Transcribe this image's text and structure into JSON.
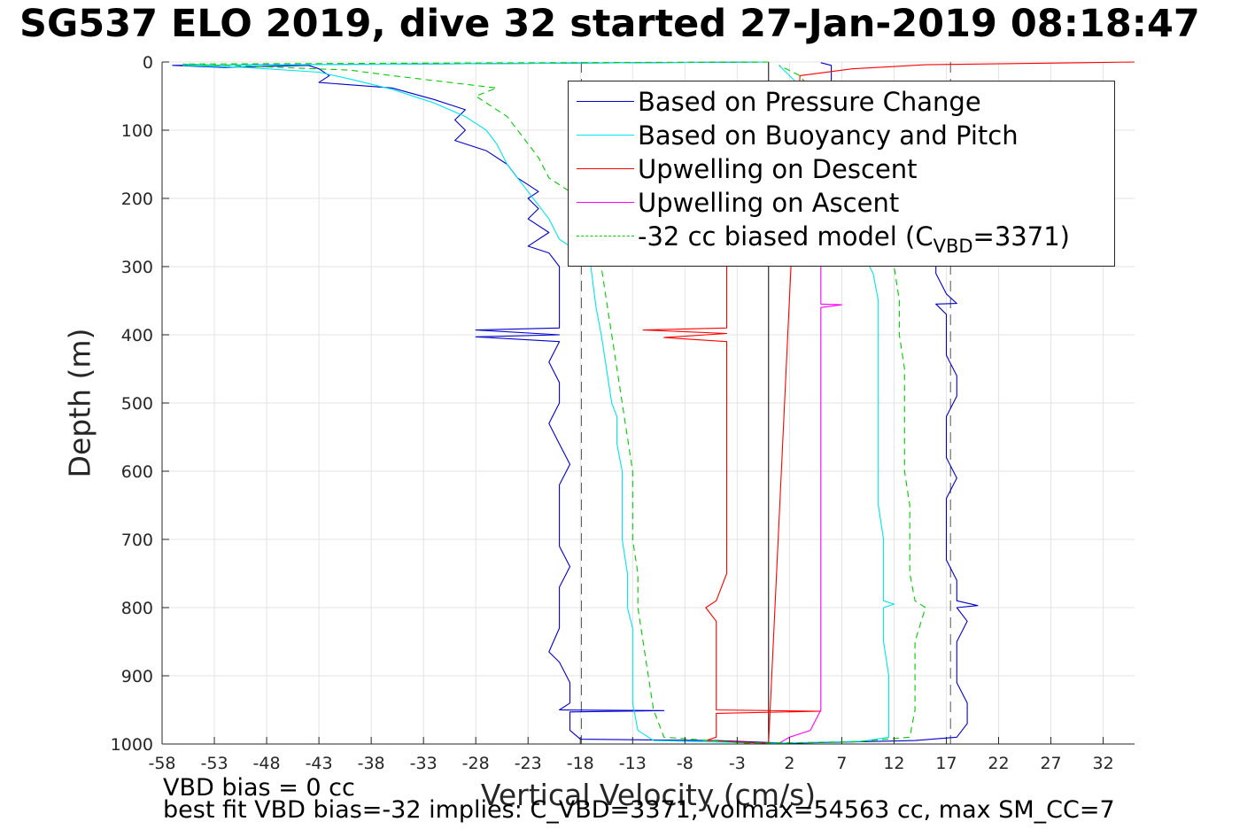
{
  "title": "SG537 ELO 2019, dive 32 started 27-Jan-2019 08:18:47",
  "xlabel": "Vertical Velocity (cm/s)",
  "ylabel": "Depth (m)",
  "footer": {
    "line1": "VBD bias = 0 cc",
    "line2": "best fit VBD bias=-32 implies: C_VBD=3371, volmax=54563 cc, max SM_CC=7"
  },
  "legend": {
    "items": [
      {
        "label": "Based on Pressure Change",
        "color": "#0000cc",
        "style": "solid"
      },
      {
        "label": "Based on Buoyancy and Pitch",
        "color": "#00e5ee",
        "style": "solid"
      },
      {
        "label": "Upwelling on Descent",
        "color": "#ff0000",
        "style": "solid"
      },
      {
        "label": "Upwelling on Ascent",
        "color": "#ff00ff",
        "style": "solid"
      },
      {
        "label_prefix": "-32 cc biased model (C",
        "label_sub": "VBD",
        "label_suffix": "=3371)",
        "color": "#00cc00",
        "style": "dashed"
      }
    ]
  },
  "chart_data": {
    "type": "line",
    "title": "SG537 ELO 2019, dive 32 started 27-Jan-2019 08:18:47",
    "xlabel": "Vertical Velocity (cm/s)",
    "ylabel": "Depth (m)",
    "xlim": [
      -58,
      35
    ],
    "ylim": [
      0,
      1000
    ],
    "y_reversed": true,
    "grid": true,
    "legend_position": "top-right",
    "x_ticks": [
      -58,
      -53,
      -48,
      -43,
      -38,
      -33,
      -28,
      -23,
      -18,
      -13,
      -8,
      -3,
      2,
      7,
      12,
      17,
      22,
      27,
      32
    ],
    "y_ticks": [
      0,
      100,
      200,
      300,
      400,
      500,
      600,
      700,
      800,
      900,
      1000
    ],
    "reference_lines": [
      {
        "axis": "x",
        "value": 0,
        "style": "solid",
        "color": "#000000"
      },
      {
        "axis": "x",
        "value": -17.9,
        "style": "dashed",
        "color": "#555555"
      },
      {
        "axis": "x",
        "value": 17.4,
        "style": "dashed",
        "color": "#555555"
      }
    ],
    "series": [
      {
        "name": "Based on Pressure Change",
        "color": "#0000cc",
        "style": "solid",
        "points": [
          [
            0,
            0
          ],
          [
            -57,
            5
          ],
          [
            -52,
            8
          ],
          [
            -44,
            5
          ],
          [
            -43,
            10
          ],
          [
            -42,
            20
          ],
          [
            -43,
            30
          ],
          [
            -36,
            38
          ],
          [
            -32,
            55
          ],
          [
            -29,
            70
          ],
          [
            -30,
            85
          ],
          [
            -29,
            100
          ],
          [
            -30,
            115
          ],
          [
            -27,
            130
          ],
          [
            -25,
            150
          ],
          [
            -24,
            170
          ],
          [
            -23,
            180
          ],
          [
            -22,
            190
          ],
          [
            -23,
            200
          ],
          [
            -22,
            215
          ],
          [
            -23,
            230
          ],
          [
            -21,
            250
          ],
          [
            -23,
            270
          ],
          [
            -21,
            280
          ],
          [
            -20,
            300
          ],
          [
            -20,
            330
          ],
          [
            -20,
            360
          ],
          [
            -20,
            390
          ],
          [
            -28,
            393
          ],
          [
            -20,
            400
          ],
          [
            -28,
            403
          ],
          [
            -20,
            410
          ],
          [
            -21,
            440
          ],
          [
            -20,
            470
          ],
          [
            -20,
            500
          ],
          [
            -21,
            530
          ],
          [
            -20,
            560
          ],
          [
            -19,
            590
          ],
          [
            -20,
            620
          ],
          [
            -20,
            650
          ],
          [
            -20,
            680
          ],
          [
            -20,
            710
          ],
          [
            -19,
            740
          ],
          [
            -20,
            770
          ],
          [
            -20,
            800
          ],
          [
            -20,
            830
          ],
          [
            -21,
            865
          ],
          [
            -20,
            880
          ],
          [
            -19,
            910
          ],
          [
            -19,
            940
          ],
          [
            -20,
            950
          ],
          [
            -10,
            951
          ],
          [
            -19,
            953
          ],
          [
            -19,
            980
          ],
          [
            -18,
            993
          ],
          [
            -5,
            995
          ],
          [
            2,
            999
          ],
          [
            14,
            995
          ],
          [
            18,
            990
          ],
          [
            19,
            970
          ],
          [
            19,
            940
          ],
          [
            18,
            910
          ],
          [
            18,
            880
          ],
          [
            18,
            850
          ],
          [
            19,
            820
          ],
          [
            18,
            800
          ],
          [
            20,
            797
          ],
          [
            18,
            790
          ],
          [
            18,
            760
          ],
          [
            17,
            730
          ],
          [
            17,
            700
          ],
          [
            17,
            670
          ],
          [
            17,
            640
          ],
          [
            18,
            610
          ],
          [
            17,
            580
          ],
          [
            17,
            550
          ],
          [
            17,
            520
          ],
          [
            18,
            490
          ],
          [
            18,
            460
          ],
          [
            17,
            430
          ],
          [
            17,
            400
          ],
          [
            17,
            370
          ],
          [
            16,
            355
          ],
          [
            18,
            354
          ],
          [
            17,
            340
          ],
          [
            16,
            310
          ],
          [
            16,
            290
          ],
          [
            16,
            270
          ],
          [
            15,
            250
          ],
          [
            14,
            230
          ],
          [
            13,
            200
          ],
          [
            10,
            150
          ],
          [
            8,
            100
          ],
          [
            6,
            40
          ],
          [
            6,
            20
          ],
          [
            6,
            5
          ],
          [
            5,
            1
          ]
        ]
      },
      {
        "name": "Based on Buoyancy and Pitch",
        "color": "#00e5ee",
        "style": "solid",
        "points": [
          [
            0,
            0
          ],
          [
            -56,
            5
          ],
          [
            -50,
            8
          ],
          [
            -43,
            15
          ],
          [
            -40,
            25
          ],
          [
            -36,
            40
          ],
          [
            -32,
            60
          ],
          [
            -29,
            80
          ],
          [
            -27,
            100
          ],
          [
            -26,
            120
          ],
          [
            -25,
            150
          ],
          [
            -24,
            170
          ],
          [
            -23,
            190
          ],
          [
            -22,
            210
          ],
          [
            -21,
            230
          ],
          [
            -20,
            260
          ],
          [
            -18,
            280
          ],
          [
            -17,
            300
          ],
          [
            -16.5,
            360
          ],
          [
            -16,
            400
          ],
          [
            -15.5,
            450
          ],
          [
            -15,
            500
          ],
          [
            -14.5,
            520
          ],
          [
            -14.5,
            560
          ],
          [
            -14,
            600
          ],
          [
            -14,
            650
          ],
          [
            -14,
            700
          ],
          [
            -13.5,
            750
          ],
          [
            -13.5,
            800
          ],
          [
            -13,
            830
          ],
          [
            -13,
            870
          ],
          [
            -13,
            900
          ],
          [
            -13,
            940
          ],
          [
            -12.5,
            980
          ],
          [
            -11,
            995
          ],
          [
            0,
            999
          ],
          [
            9,
            996
          ],
          [
            11.5,
            990
          ],
          [
            11.5,
            950
          ],
          [
            11.5,
            900
          ],
          [
            11,
            850
          ],
          [
            11,
            800
          ],
          [
            12,
            795
          ],
          [
            11,
            790
          ],
          [
            11,
            750
          ],
          [
            11,
            700
          ],
          [
            10.5,
            650
          ],
          [
            10.5,
            600
          ],
          [
            10.5,
            550
          ],
          [
            10.5,
            500
          ],
          [
            10.5,
            450
          ],
          [
            10.5,
            400
          ],
          [
            10.5,
            350
          ],
          [
            10,
            310
          ],
          [
            9,
            280
          ],
          [
            8,
            200
          ],
          [
            6,
            120
          ],
          [
            4,
            50
          ],
          [
            2,
            20
          ],
          [
            1,
            5
          ]
        ]
      },
      {
        "name": "Upwelling on Descent",
        "color": "#ff0000",
        "style": "solid",
        "points": [
          [
            -4,
            300
          ],
          [
            -4,
            330
          ],
          [
            -4,
            360
          ],
          [
            -4,
            390
          ],
          [
            -12,
            393
          ],
          [
            -4,
            398
          ],
          [
            -10,
            404
          ],
          [
            -4,
            410
          ],
          [
            -4,
            450
          ],
          [
            -4,
            500
          ],
          [
            -4,
            550
          ],
          [
            -4,
            600
          ],
          [
            -4,
            650
          ],
          [
            -4,
            700
          ],
          [
            -4,
            750
          ],
          [
            -5,
            790
          ],
          [
            -6,
            800
          ],
          [
            -5,
            820
          ],
          [
            -5,
            870
          ],
          [
            -5,
            900
          ],
          [
            -5,
            950
          ],
          [
            5,
            952
          ],
          [
            -5,
            955
          ],
          [
            -5,
            990
          ],
          [
            -6,
            995
          ],
          [
            0,
            999
          ],
          [
            3,
            20
          ],
          [
            8,
            10
          ],
          [
            15,
            4
          ],
          [
            30,
            1
          ],
          [
            35,
            0
          ]
        ]
      },
      {
        "name": "Upwelling on Ascent",
        "color": "#ff00ff",
        "style": "solid",
        "points": [
          [
            5,
            300
          ],
          [
            5,
            330
          ],
          [
            5,
            355
          ],
          [
            7,
            356
          ],
          [
            5,
            360
          ],
          [
            5,
            400
          ],
          [
            5,
            450
          ],
          [
            5,
            500
          ],
          [
            5,
            550
          ],
          [
            5,
            600
          ],
          [
            5,
            650
          ],
          [
            5,
            700
          ],
          [
            5,
            750
          ],
          [
            5,
            800
          ],
          [
            5,
            850
          ],
          [
            5,
            900
          ],
          [
            5,
            950
          ],
          [
            4,
            980
          ],
          [
            2,
            990
          ],
          [
            1,
            999
          ]
        ]
      },
      {
        "name": "-32 cc biased model (C_VBD=3371)",
        "color": "#00cc00",
        "style": "dashed",
        "points": [
          [
            0,
            0
          ],
          [
            -56,
            3
          ],
          [
            -50,
            6
          ],
          [
            -40,
            12
          ],
          [
            -36,
            20
          ],
          [
            -26,
            38
          ],
          [
            -28,
            50
          ],
          [
            -25,
            80
          ],
          [
            -24,
            100
          ],
          [
            -22,
            140
          ],
          [
            -21,
            170
          ],
          [
            -18,
            200
          ],
          [
            -17,
            250
          ],
          [
            -16,
            300
          ],
          [
            -15.5,
            350
          ],
          [
            -15,
            400
          ],
          [
            -14.5,
            450
          ],
          [
            -14,
            500
          ],
          [
            -13.5,
            550
          ],
          [
            -13,
            600
          ],
          [
            -13,
            650
          ],
          [
            -13,
            700
          ],
          [
            -12.5,
            750
          ],
          [
            -12.5,
            800
          ],
          [
            -12,
            850
          ],
          [
            -11.5,
            900
          ],
          [
            -11,
            950
          ],
          [
            -10,
            990
          ],
          [
            -2,
            999
          ],
          [
            8,
            997
          ],
          [
            13.5,
            990
          ],
          [
            14,
            950
          ],
          [
            14,
            900
          ],
          [
            14,
            850
          ],
          [
            15,
            800
          ],
          [
            14,
            790
          ],
          [
            13.5,
            750
          ],
          [
            13.5,
            700
          ],
          [
            13.5,
            650
          ],
          [
            13,
            600
          ],
          [
            13,
            550
          ],
          [
            13,
            500
          ],
          [
            13,
            450
          ],
          [
            12.5,
            400
          ],
          [
            12.5,
            350
          ],
          [
            12,
            300
          ],
          [
            11,
            250
          ],
          [
            9,
            180
          ],
          [
            6,
            80
          ],
          [
            3,
            20
          ],
          [
            1,
            5
          ]
        ]
      }
    ]
  }
}
